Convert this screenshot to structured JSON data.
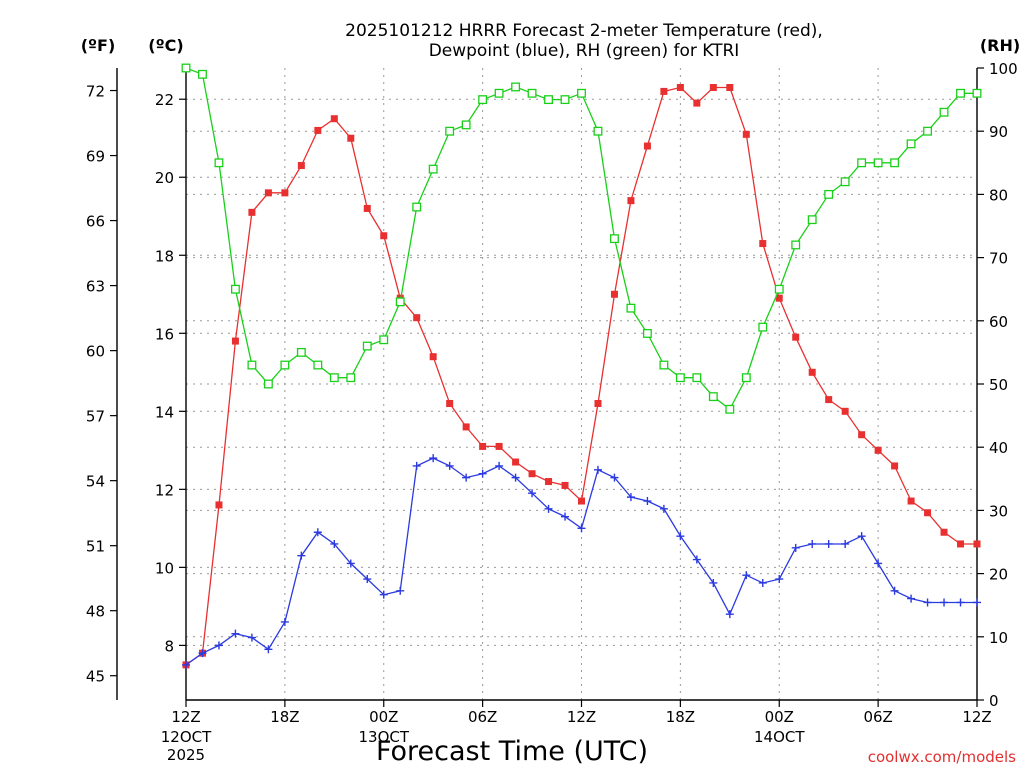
{
  "chart_data": {
    "type": "line",
    "title": "2025101212 HRRR Forecast 2-meter Temperature (red),",
    "subtitle": "Dewpoint (blue), RH (green) for KTRI",
    "xlabel": "Forecast Time (UTC)",
    "unit_labels": {
      "fahrenheit": "(ºF)",
      "celsius": "(ºC)",
      "rh": "(RH)"
    },
    "credit": "coolwx.com/models",
    "grid": true,
    "x_ticks": [
      {
        "h": 0,
        "l1": "12Z",
        "l2": "12OCT",
        "l3": "2025"
      },
      {
        "h": 6,
        "l1": "18Z",
        "l2": "",
        "l3": ""
      },
      {
        "h": 12,
        "l1": "00Z",
        "l2": "13OCT",
        "l3": ""
      },
      {
        "h": 18,
        "l1": "06Z",
        "l2": "",
        "l3": ""
      },
      {
        "h": 24,
        "l1": "12Z",
        "l2": "",
        "l3": ""
      },
      {
        "h": 30,
        "l1": "18Z",
        "l2": "",
        "l3": ""
      },
      {
        "h": 36,
        "l1": "00Z",
        "l2": "14OCT",
        "l3": ""
      },
      {
        "h": 42,
        "l1": "06Z",
        "l2": "",
        "l3": ""
      },
      {
        "h": 48,
        "l1": "12Z",
        "l2": "",
        "l3": ""
      }
    ],
    "x_range_hours": [
      0,
      48
    ],
    "y_celsius": {
      "ticks": [
        8,
        10,
        12,
        14,
        16,
        18,
        20,
        22
      ],
      "range": [
        6.6,
        22.8
      ]
    },
    "y_fahrenheit": {
      "ticks": [
        45,
        48,
        51,
        54,
        57,
        60,
        63,
        66,
        69,
        72
      ]
    },
    "y_rh": {
      "ticks": [
        0,
        10,
        20,
        30,
        40,
        50,
        60,
        70,
        80,
        90,
        100
      ],
      "range": [
        0,
        100
      ]
    },
    "series": [
      {
        "name": "Temperature",
        "color": "#e83030",
        "marker": "filled-square",
        "axis": "celsius",
        "values": [
          7.5,
          7.8,
          11.6,
          15.8,
          19.1,
          19.6,
          19.6,
          20.3,
          21.2,
          21.5,
          21.0,
          19.2,
          18.5,
          16.9,
          16.4,
          15.4,
          14.2,
          13.6,
          13.1,
          13.1,
          12.7,
          12.4,
          12.2,
          12.1,
          11.7,
          14.2,
          17.0,
          19.4,
          20.8,
          22.2,
          22.3,
          21.9,
          22.3,
          22.3,
          21.1,
          18.3,
          16.9,
          15.9,
          15.0,
          14.3,
          14.0,
          13.4,
          13.0,
          12.6,
          11.7,
          11.4,
          10.9,
          10.6,
          10.6
        ]
      },
      {
        "name": "Dewpoint",
        "color": "#2b3adf",
        "marker": "plus",
        "axis": "celsius",
        "values": [
          7.5,
          7.8,
          8.0,
          8.3,
          8.2,
          7.9,
          8.6,
          10.3,
          10.9,
          10.6,
          10.1,
          9.7,
          9.3,
          9.4,
          12.6,
          12.8,
          12.6,
          12.3,
          12.4,
          12.6,
          12.3,
          11.9,
          11.5,
          11.3,
          11.0,
          12.5,
          12.3,
          11.8,
          11.7,
          11.5,
          10.8,
          10.2,
          9.6,
          8.8,
          9.8,
          9.6,
          9.7,
          10.5,
          10.6,
          10.6,
          10.6,
          10.8,
          10.1,
          9.4,
          9.2,
          9.1,
          9.1,
          9.1,
          9.1
        ]
      },
      {
        "name": "RH",
        "color": "#19d019",
        "marker": "open-square",
        "axis": "rh",
        "values": [
          100,
          99,
          85,
          65,
          53,
          50,
          53,
          55,
          53,
          51,
          51,
          56,
          57,
          63,
          78,
          84,
          90,
          91,
          95,
          96,
          97,
          96,
          95,
          95,
          96,
          90,
          73,
          62,
          58,
          53,
          51,
          51,
          48,
          46,
          51,
          59,
          65,
          72,
          76,
          80,
          82,
          85,
          85,
          85,
          88,
          90,
          93,
          96,
          96
        ]
      }
    ]
  }
}
